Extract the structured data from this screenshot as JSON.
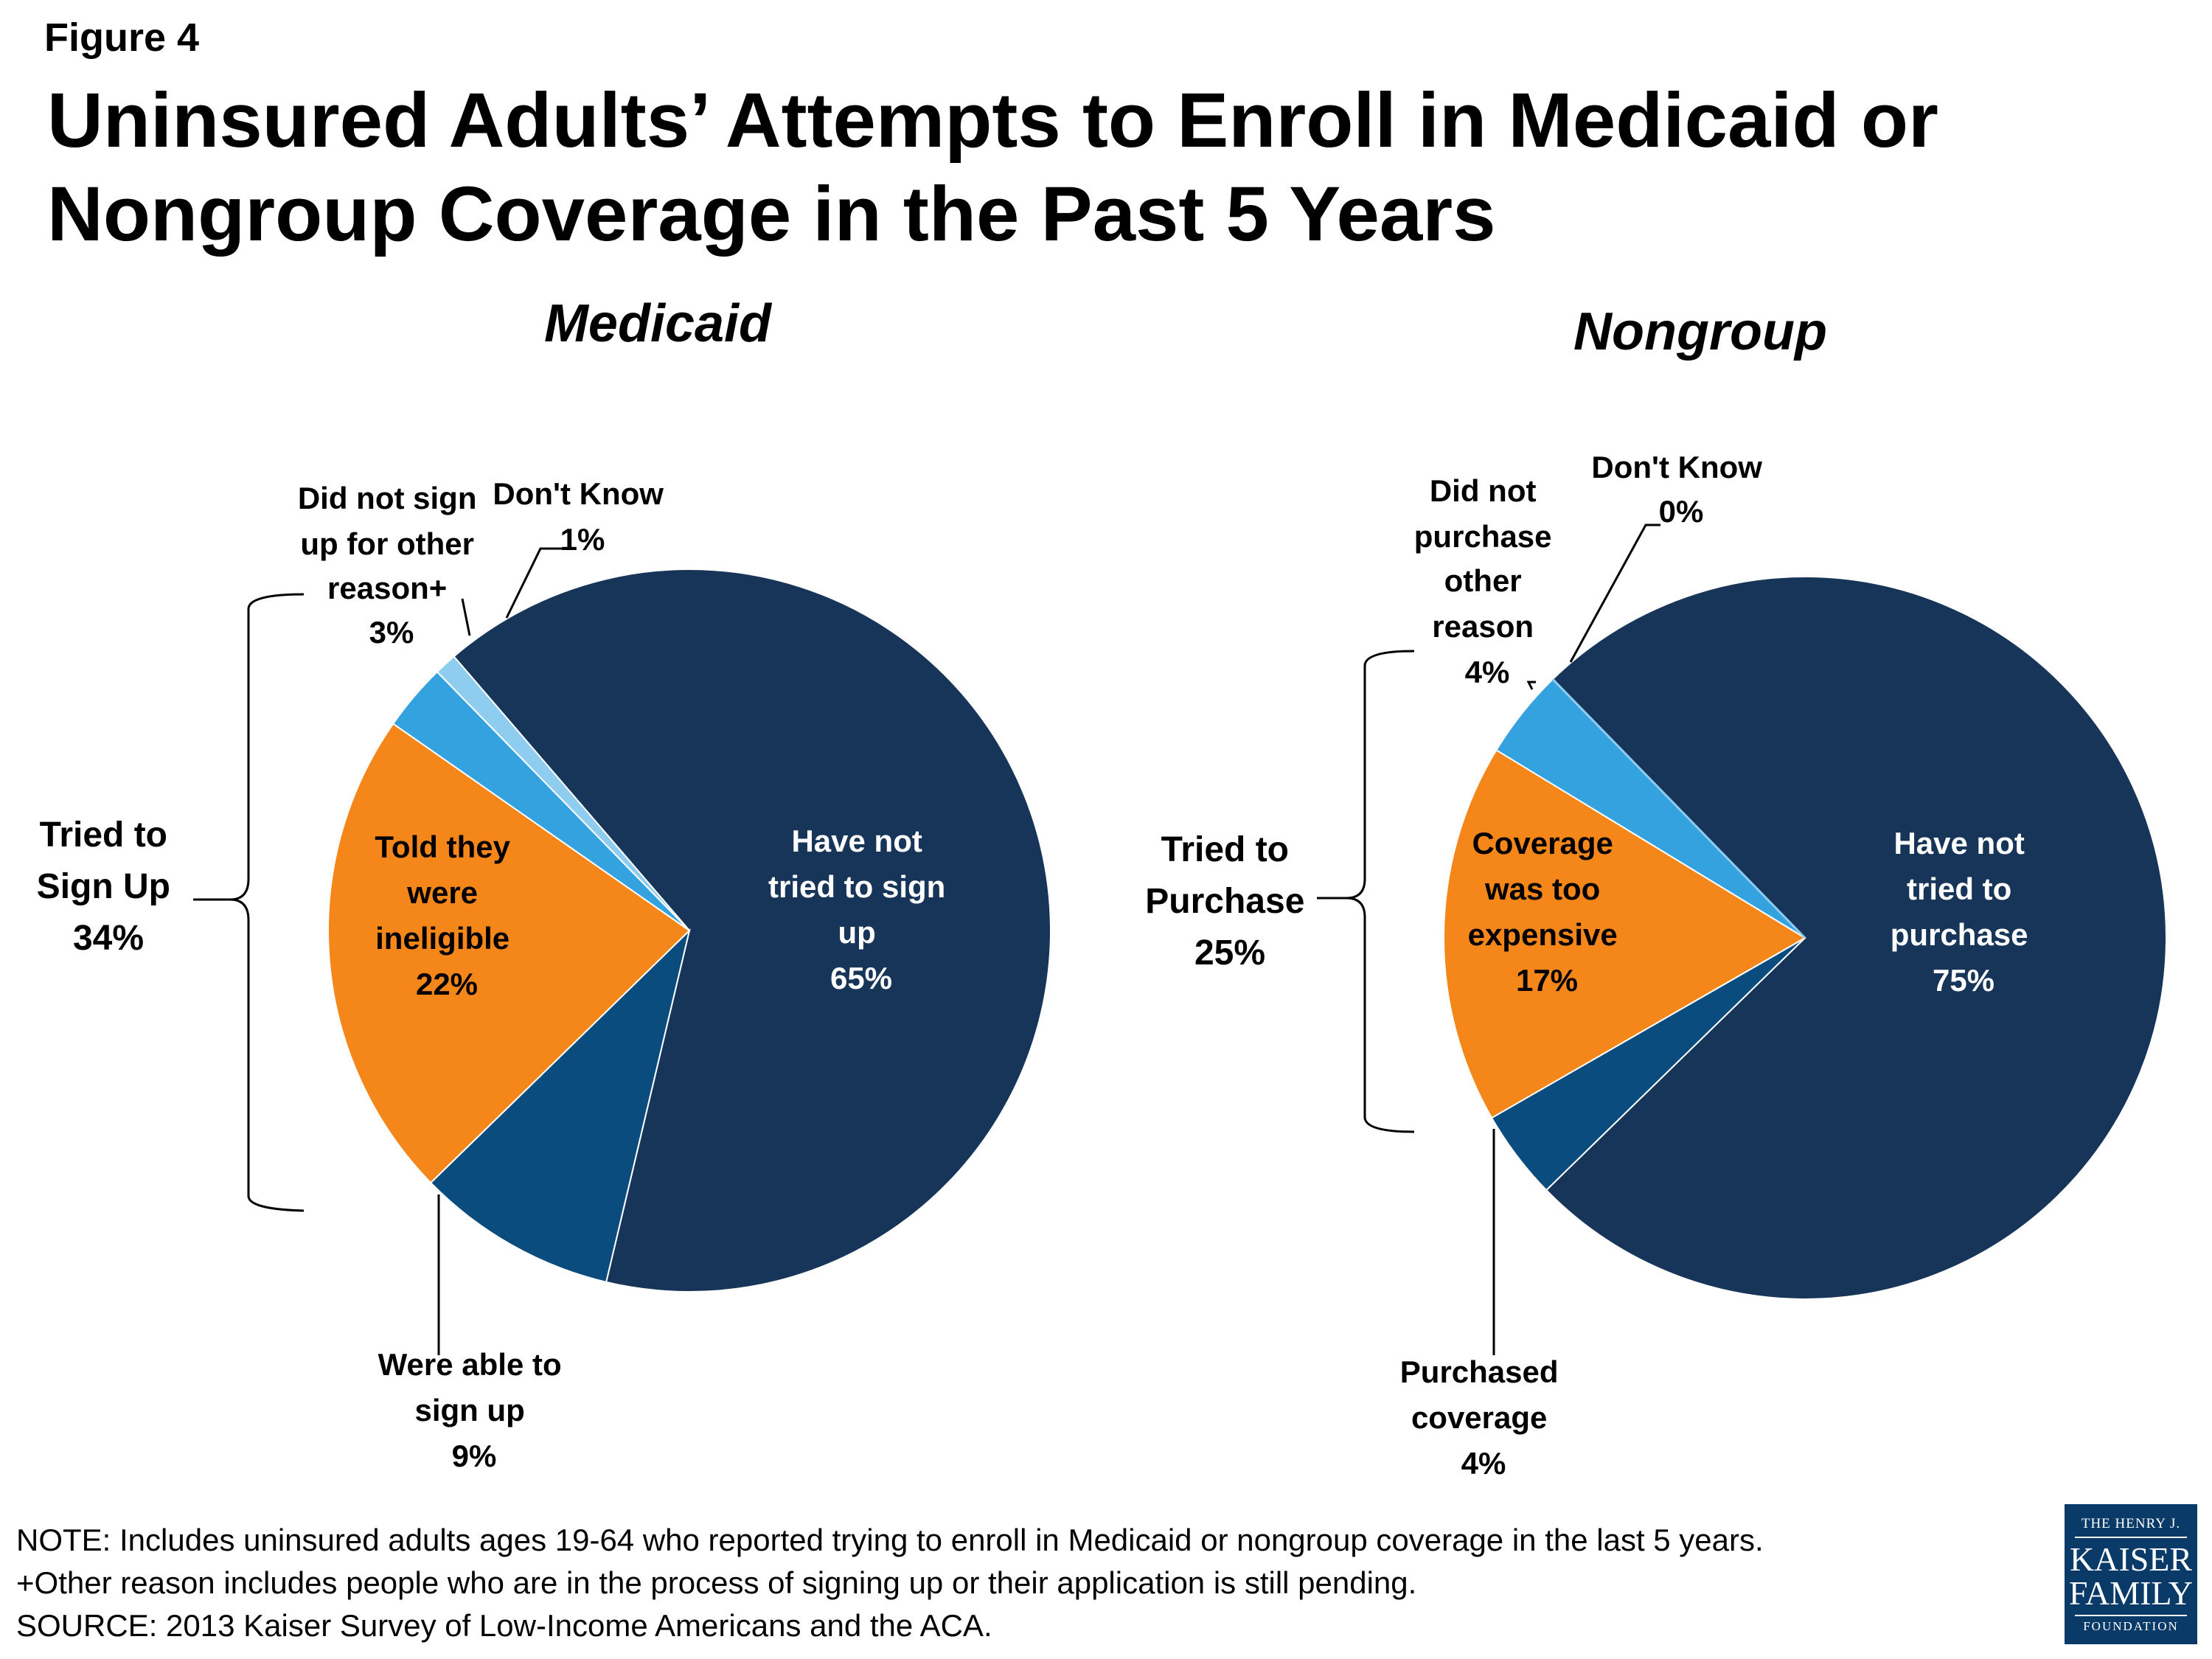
{
  "figure_label": "Figure 4",
  "title": "Uninsured Adults’ Attempts to Enroll in Medicaid or Nongroup Coverage in the Past 5 Years",
  "chart_data": [
    {
      "type": "pie",
      "title": "Medicaid",
      "slices": [
        {
          "name": "Have not tried to sign up",
          "label_lines": [
            "Have not",
            "tried to sign",
            "up",
            "65%"
          ],
          "value": 65,
          "color": "#173459"
        },
        {
          "name": "Were able to sign up",
          "label_lines": [
            "Were able to",
            "sign up",
            "9%"
          ],
          "value": 9,
          "color": "#0b4c7e"
        },
        {
          "name": "Told they were ineligible",
          "label_lines": [
            "Told they",
            "were",
            "ineligible",
            "22%"
          ],
          "value": 22,
          "color": "#f4861a"
        },
        {
          "name": "Did not sign up for other reason+",
          "label_lines": [
            "Did not sign",
            "up for other",
            "reason+",
            "3%"
          ],
          "value": 3,
          "color": "#35a2e0"
        },
        {
          "name": "Don't Know",
          "label_lines": [
            "Don't Know",
            "1%"
          ],
          "value": 1,
          "color": "#8ecdf0"
        }
      ],
      "bracket_label_lines": [
        "Tried to",
        "Sign Up",
        "34%"
      ]
    },
    {
      "type": "pie",
      "title": "Nongroup",
      "slices": [
        {
          "name": "Have not tried to purchase",
          "label_lines": [
            "Have not",
            "tried to",
            "purchase",
            "75%"
          ],
          "value": 75,
          "color": "#173459"
        },
        {
          "name": "Purchased coverage",
          "label_lines": [
            "Purchased",
            "coverage",
            "4%"
          ],
          "value": 4,
          "color": "#0b4c7e"
        },
        {
          "name": "Coverage was too expensive",
          "label_lines": [
            "Coverage",
            "was too",
            "expensive",
            "17%"
          ],
          "value": 17,
          "color": "#f4861a"
        },
        {
          "name": "Did not purchase other reason",
          "label_lines": [
            "Did not",
            "purchase",
            "other",
            "reason",
            "4%"
          ],
          "value": 4,
          "color": "#35a2e0"
        },
        {
          "name": "Don't Know",
          "label_lines": [
            "Don't Know",
            "0%"
          ],
          "value": 0,
          "color": "#8ecdf0"
        }
      ],
      "bracket_label_lines": [
        "Tried to",
        "Purchase",
        "25%"
      ]
    }
  ],
  "footnotes": [
    "NOTE: Includes uninsured adults ages 19-64 who reported trying to enroll in Medicaid or nongroup coverage in the last 5 years.",
    "+Other reason includes people who are in the process of signing up or their application is still pending.",
    "SOURCE: 2013 Kaiser Survey of Low-Income Americans and the ACA."
  ],
  "logo": {
    "line1": "THE HENRY J.",
    "line2": "KAISER",
    "line3": "FAMILY",
    "line4": "FOUNDATION"
  }
}
